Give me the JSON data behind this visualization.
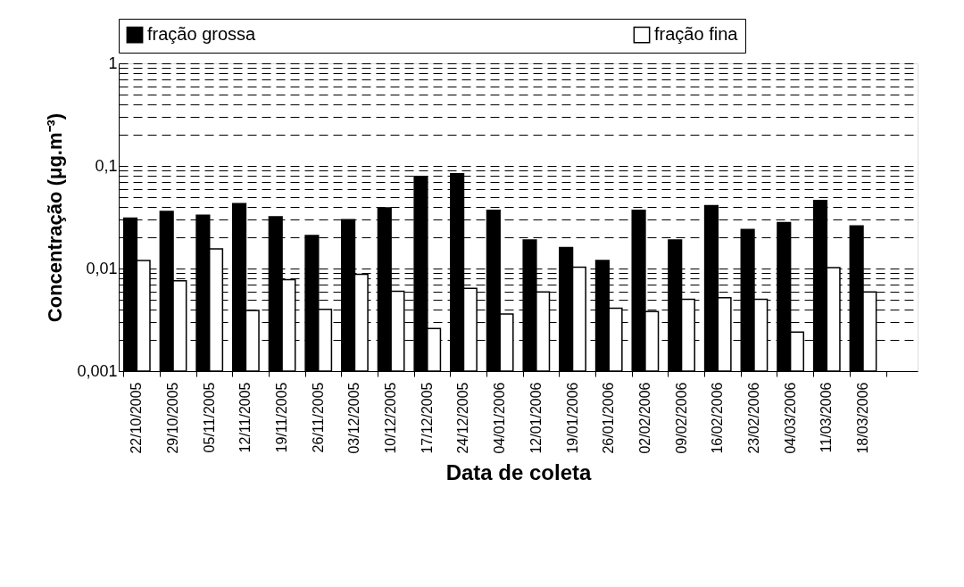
{
  "chart_data": {
    "type": "bar",
    "xlabel": "Data de coleta",
    "ylabel": "Concentração (μg.m⁻³)",
    "categories": [
      "22/10/2005",
      "29/10/2005",
      "05/11/2005",
      "12/11/2005",
      "19/11/2005",
      "26/11/2005",
      "03/12/2005",
      "10/12/2005",
      "17/12/2005",
      "24/12/2005",
      "04/01/2006",
      "12/01/2006",
      "19/01/2006",
      "26/01/2006",
      "02/02/2006",
      "09/02/2006",
      "16/02/2006",
      "23/02/2006",
      "04/03/2006",
      "11/03/2006",
      "18/03/2006",
      null
    ],
    "series": [
      {
        "name": "fração grossa",
        "color": "#000000",
        "values": [
          0.031,
          0.036,
          0.033,
          0.043,
          0.032,
          0.021,
          0.03,
          0.039,
          0.079,
          0.084,
          0.037,
          0.019,
          0.016,
          0.012,
          0.037,
          0.019,
          0.041,
          0.024,
          0.028,
          0.046,
          0.026,
          null
        ]
      },
      {
        "name": "fração fina",
        "color": "#ffffff",
        "values": [
          0.012,
          0.0076,
          0.0155,
          0.0039,
          0.0078,
          0.004,
          0.0088,
          0.006,
          0.0026,
          0.0064,
          0.0036,
          0.0059,
          0.0103,
          0.0041,
          0.0038,
          0.005,
          0.0052,
          0.005,
          0.0024,
          0.0102,
          0.0059,
          null
        ]
      }
    ],
    "log": true,
    "ylim": [
      0.001,
      1
    ],
    "yticks": [
      {
        "value": 0.001,
        "label": "0,001"
      },
      {
        "value": 0.01,
        "label": "0,01"
      },
      {
        "value": 0.1,
        "label": "0,1"
      },
      {
        "value": 1,
        "label": "1"
      }
    ],
    "grid": "y",
    "legend": "top"
  }
}
